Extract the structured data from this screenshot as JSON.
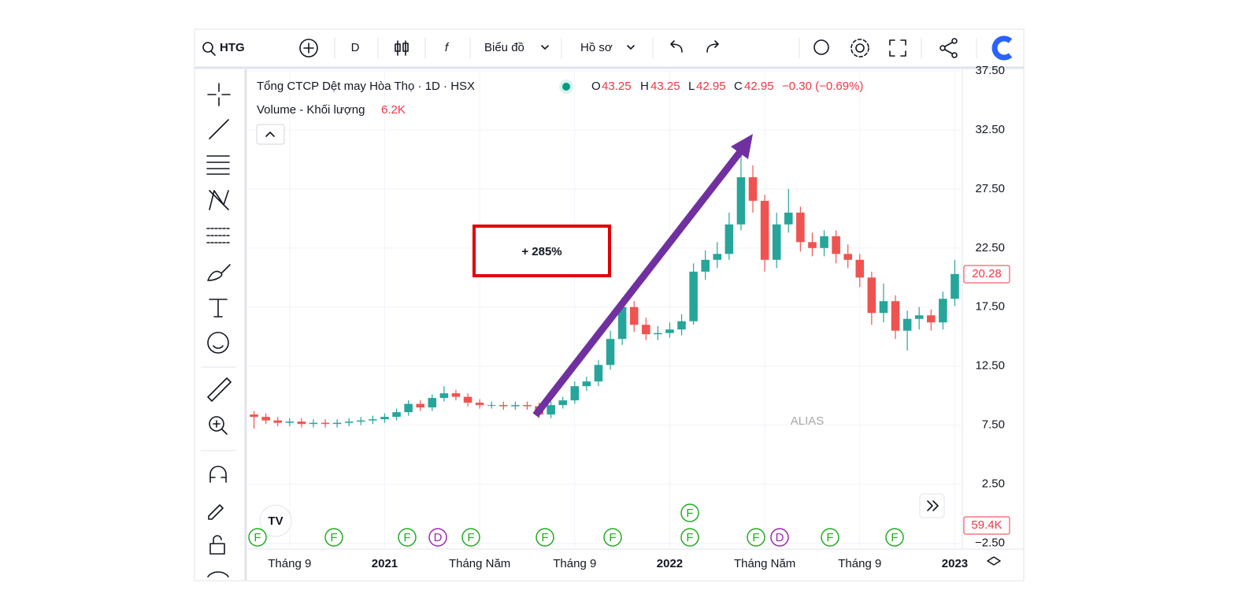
{
  "toolbar": {
    "symbol": "HTG",
    "interval": "D",
    "chart_menu": "Biểu đồ",
    "profile_menu": "Hồ sơ"
  },
  "legend": {
    "title": "Tổng CTCP Dệt may Hòa Thọ · 1D · HSX",
    "o_label": "O",
    "o": "43.25",
    "h_label": "H",
    "h": "43.25",
    "l_label": "L",
    "l": "42.95",
    "c_label": "C",
    "c": "42.95",
    "change": "−0.30 (−0.69%)",
    "volume_label": "Volume - Khối lượng",
    "volume": "6.2K"
  },
  "annotation": "+ 285%",
  "watermark": "ALIAS",
  "last_price_label": "20.28",
  "last_volume_label": "59.4K",
  "events": [
    "F",
    "F",
    "F",
    "D",
    "F",
    "F",
    "F",
    "F",
    "F",
    "F",
    "D",
    "F",
    "F"
  ],
  "chart_data": {
    "type": "candlestick",
    "up_color": "#26a69a",
    "down_color": "#ef5350",
    "categories": [
      null,
      null,
      null,
      "Tháng 9",
      null,
      null,
      null,
      null,
      null,
      null,
      null,
      "2021",
      null,
      null,
      null,
      null,
      null,
      null,
      null,
      "Tháng Năm",
      null,
      null,
      null,
      null,
      null,
      null,
      null,
      "Tháng 9",
      null,
      null,
      null,
      null,
      null,
      null,
      null,
      "2022",
      null,
      null,
      null,
      null,
      null,
      null,
      null,
      "Tháng Năm",
      null,
      null,
      null,
      null,
      null,
      null,
      null,
      "Tháng 9",
      null,
      null,
      null,
      null,
      null,
      null,
      null,
      "2023"
    ],
    "open": [
      8.4,
      8.2,
      7.9,
      7.7,
      7.8,
      7.6,
      7.7,
      7.6,
      7.7,
      7.8,
      7.9,
      8.0,
      8.2,
      8.6,
      9.3,
      9.0,
      9.8,
      10.2,
      9.9,
      9.4,
      9.2,
      9.2,
      9.1,
      9.2,
      9.1,
      8.4,
      9.2,
      9.6,
      10.8,
      11.2,
      12.6,
      14.8,
      17.5,
      16.0,
      15.2,
      15.3,
      15.6,
      16.3,
      20.5,
      21.5,
      22.0,
      24.5,
      28.5,
      26.5,
      21.5,
      24.5,
      25.5,
      23.0,
      22.5,
      23.5,
      22.0,
      21.5,
      20.0,
      17.0,
      18.0,
      15.5,
      16.5,
      16.8,
      16.2,
      18.2
    ],
    "high": [
      8.7,
      8.5,
      8.2,
      8.1,
      8.1,
      8.0,
      8.0,
      8.0,
      8.1,
      8.2,
      8.3,
      8.5,
      8.9,
      9.6,
      9.6,
      10.1,
      10.8,
      10.5,
      10.2,
      9.7,
      9.5,
      9.5,
      9.5,
      9.5,
      9.4,
      9.5,
      9.9,
      11.2,
      11.6,
      13.0,
      15.5,
      18.3,
      18.0,
      16.6,
      15.9,
      16.2,
      16.9,
      21.2,
      22.3,
      23.0,
      25.5,
      30.5,
      29.5,
      27.0,
      25.5,
      27.5,
      26.0,
      23.8,
      24.0,
      24.0,
      22.8,
      22.0,
      20.5,
      19.5,
      18.5,
      17.2,
      17.5,
      17.3,
      18.8,
      21.5
    ],
    "low": [
      7.2,
      7.6,
      7.4,
      7.4,
      7.3,
      7.3,
      7.3,
      7.3,
      7.4,
      7.5,
      7.6,
      7.7,
      7.9,
      8.3,
      8.7,
      8.7,
      9.5,
      9.6,
      9.1,
      8.9,
      8.9,
      8.8,
      8.8,
      8.8,
      8.1,
      8.1,
      8.9,
      9.3,
      10.4,
      10.8,
      12.2,
      14.3,
      15.4,
      14.7,
      14.7,
      14.9,
      15.1,
      16.0,
      19.8,
      20.8,
      21.5,
      24.0,
      25.5,
      20.5,
      20.8,
      23.8,
      22.2,
      21.8,
      21.8,
      21.2,
      20.8,
      19.2,
      16.0,
      16.2,
      14.8,
      13.8,
      15.6,
      15.5,
      15.6,
      17.6
    ],
    "close": [
      8.2,
      7.9,
      7.7,
      7.8,
      7.6,
      7.7,
      7.6,
      7.7,
      7.8,
      7.9,
      8.0,
      8.2,
      8.6,
      9.3,
      9.0,
      9.8,
      10.2,
      9.9,
      9.4,
      9.2,
      9.2,
      9.1,
      9.2,
      9.1,
      8.4,
      9.2,
      9.6,
      10.8,
      11.2,
      12.6,
      14.8,
      17.5,
      16.0,
      15.2,
      15.3,
      15.6,
      16.3,
      20.5,
      21.5,
      22.0,
      24.5,
      28.5,
      26.5,
      21.5,
      24.5,
      25.5,
      23.0,
      22.5,
      23.5,
      22.0,
      21.5,
      20.0,
      17.0,
      18.0,
      15.5,
      16.5,
      16.8,
      16.2,
      18.2,
      20.3
    ],
    "ylim": [
      -3,
      37.5
    ],
    "yticks": [
      {
        "value": -2.5,
        "label": "−2.50"
      },
      {
        "value": 2.5,
        "label": "2.50"
      },
      {
        "value": 7.5,
        "label": "7.50"
      },
      {
        "value": 12.5,
        "label": "12.50"
      },
      {
        "value": 17.5,
        "label": "17.50"
      },
      {
        "value": 22.5,
        "label": "22.50"
      },
      {
        "value": 27.5,
        "label": "27.50"
      },
      {
        "value": 32.5,
        "label": "32.50"
      },
      {
        "value": 37.5,
        "label": "37.50"
      }
    ],
    "grid": true
  }
}
